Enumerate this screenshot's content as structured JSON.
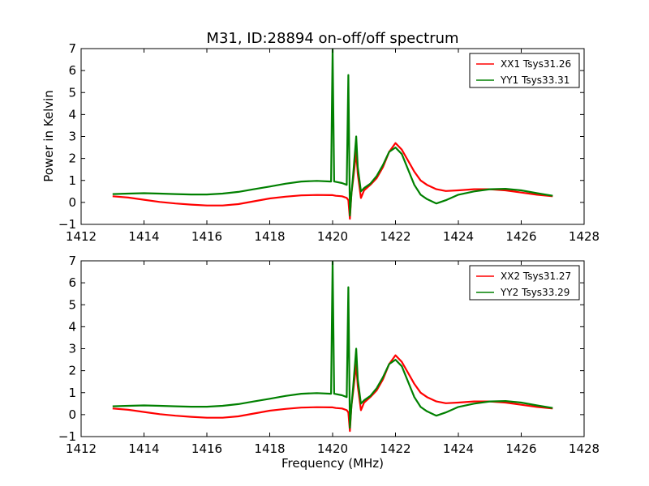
{
  "figure": {
    "title": "M31, ID:28894 on-off/off spectrum",
    "xlabel": "Frequency (MHz)",
    "ylabel": "Power in Kelvin"
  },
  "chart_data": [
    {
      "type": "line",
      "title": "M31, ID:28894 on-off/off spectrum",
      "xlabel": "",
      "ylabel": "Power in Kelvin",
      "xlim": [
        1412,
        1428
      ],
      "ylim": [
        -1,
        7
      ],
      "xticks": [
        "1412",
        "1414",
        "1416",
        "1418",
        "1420",
        "1422",
        "1424",
        "1426",
        "1428"
      ],
      "yticks": [
        "−1",
        "0",
        "1",
        "2",
        "3",
        "4",
        "5",
        "6",
        "7"
      ],
      "legend_position": "top-right",
      "grid": false,
      "series": [
        {
          "name": "XX1 Tsys31.26",
          "color": "#ff0000",
          "x": [
            1413.0,
            1413.5,
            1414.0,
            1414.5,
            1415.0,
            1415.5,
            1416.0,
            1416.5,
            1417.0,
            1417.5,
            1418.0,
            1418.5,
            1419.0,
            1419.5,
            1419.9,
            1420.0,
            1420.1,
            1420.3,
            1420.45,
            1420.5,
            1420.55,
            1420.6,
            1420.65,
            1420.75,
            1420.8,
            1420.9,
            1421.0,
            1421.2,
            1421.4,
            1421.6,
            1421.8,
            1422.0,
            1422.2,
            1422.4,
            1422.6,
            1422.8,
            1423.0,
            1423.3,
            1423.6,
            1424.0,
            1424.5,
            1425.0,
            1425.5,
            1426.0,
            1426.5,
            1427.0
          ],
          "y": [
            0.28,
            0.22,
            0.12,
            0.02,
            -0.05,
            -0.1,
            -0.14,
            -0.14,
            -0.08,
            0.05,
            0.18,
            0.26,
            0.32,
            0.34,
            0.33,
            0.33,
            0.3,
            0.28,
            0.2,
            0.1,
            -0.75,
            0.4,
            1.0,
            2.3,
            1.3,
            0.2,
            0.55,
            0.8,
            1.1,
            1.6,
            2.3,
            2.7,
            2.4,
            1.9,
            1.4,
            1.0,
            0.8,
            0.6,
            0.52,
            0.55,
            0.6,
            0.6,
            0.55,
            0.45,
            0.35,
            0.28
          ]
        },
        {
          "name": "YY1 Tsys33.31",
          "color": "#008000",
          "x": [
            1413.0,
            1413.5,
            1414.0,
            1414.5,
            1415.0,
            1415.5,
            1416.0,
            1416.5,
            1417.0,
            1417.5,
            1418.0,
            1418.5,
            1419.0,
            1419.5,
            1419.95,
            1420.0,
            1420.05,
            1420.3,
            1420.45,
            1420.5,
            1420.55,
            1420.6,
            1420.65,
            1420.75,
            1420.8,
            1420.9,
            1421.0,
            1421.2,
            1421.4,
            1421.6,
            1421.8,
            1422.0,
            1422.2,
            1422.4,
            1422.6,
            1422.8,
            1423.0,
            1423.3,
            1423.6,
            1424.0,
            1424.5,
            1425.0,
            1425.5,
            1426.0,
            1426.5,
            1427.0
          ],
          "y": [
            0.38,
            0.4,
            0.42,
            0.4,
            0.38,
            0.36,
            0.36,
            0.4,
            0.48,
            0.6,
            0.72,
            0.85,
            0.95,
            0.98,
            0.95,
            6.95,
            0.95,
            0.88,
            0.8,
            5.8,
            -0.6,
            0.4,
            1.2,
            3.0,
            1.6,
            0.5,
            0.65,
            0.85,
            1.2,
            1.7,
            2.3,
            2.5,
            2.2,
            1.5,
            0.8,
            0.35,
            0.15,
            -0.05,
            0.1,
            0.35,
            0.5,
            0.6,
            0.62,
            0.55,
            0.42,
            0.3
          ]
        }
      ]
    },
    {
      "type": "line",
      "title": "",
      "xlabel": "Frequency (MHz)",
      "ylabel": "",
      "xlim": [
        1412,
        1428
      ],
      "ylim": [
        -1,
        7
      ],
      "xticks": [
        "1412",
        "1414",
        "1416",
        "1418",
        "1420",
        "1422",
        "1424",
        "1426",
        "1428"
      ],
      "yticks": [
        "−1",
        "0",
        "1",
        "2",
        "3",
        "4",
        "5",
        "6",
        "7"
      ],
      "legend_position": "top-right",
      "grid": false,
      "series": [
        {
          "name": "XX2 Tsys31.27",
          "color": "#ff0000",
          "x": [
            1413.0,
            1413.5,
            1414.0,
            1414.5,
            1415.0,
            1415.5,
            1416.0,
            1416.5,
            1417.0,
            1417.5,
            1418.0,
            1418.5,
            1419.0,
            1419.5,
            1419.9,
            1420.0,
            1420.1,
            1420.3,
            1420.45,
            1420.5,
            1420.55,
            1420.6,
            1420.65,
            1420.75,
            1420.8,
            1420.9,
            1421.0,
            1421.2,
            1421.4,
            1421.6,
            1421.8,
            1422.0,
            1422.2,
            1422.4,
            1422.6,
            1422.8,
            1423.0,
            1423.3,
            1423.6,
            1424.0,
            1424.5,
            1425.0,
            1425.5,
            1426.0,
            1426.5,
            1427.0
          ],
          "y": [
            0.28,
            0.22,
            0.12,
            0.02,
            -0.05,
            -0.1,
            -0.14,
            -0.14,
            -0.08,
            0.05,
            0.18,
            0.26,
            0.32,
            0.34,
            0.33,
            0.33,
            0.3,
            0.28,
            0.2,
            0.1,
            -0.75,
            0.4,
            1.0,
            2.3,
            1.3,
            0.2,
            0.55,
            0.8,
            1.1,
            1.6,
            2.3,
            2.7,
            2.4,
            1.9,
            1.4,
            1.0,
            0.8,
            0.6,
            0.52,
            0.55,
            0.6,
            0.6,
            0.55,
            0.45,
            0.35,
            0.28
          ]
        },
        {
          "name": "YY2 Tsys33.29",
          "color": "#008000",
          "x": [
            1413.0,
            1413.5,
            1414.0,
            1414.5,
            1415.0,
            1415.5,
            1416.0,
            1416.5,
            1417.0,
            1417.5,
            1418.0,
            1418.5,
            1419.0,
            1419.5,
            1419.95,
            1420.0,
            1420.05,
            1420.3,
            1420.45,
            1420.5,
            1420.55,
            1420.6,
            1420.65,
            1420.75,
            1420.8,
            1420.9,
            1421.0,
            1421.2,
            1421.4,
            1421.6,
            1421.8,
            1422.0,
            1422.2,
            1422.4,
            1422.6,
            1422.8,
            1423.0,
            1423.3,
            1423.6,
            1424.0,
            1424.5,
            1425.0,
            1425.5,
            1426.0,
            1426.5,
            1427.0
          ],
          "y": [
            0.38,
            0.4,
            0.42,
            0.4,
            0.38,
            0.36,
            0.36,
            0.4,
            0.48,
            0.6,
            0.72,
            0.85,
            0.95,
            0.98,
            0.95,
            6.95,
            0.95,
            0.88,
            0.8,
            5.8,
            -0.6,
            0.4,
            1.2,
            3.0,
            1.6,
            0.5,
            0.65,
            0.85,
            1.2,
            1.7,
            2.3,
            2.5,
            2.2,
            1.5,
            0.8,
            0.35,
            0.15,
            -0.05,
            0.1,
            0.35,
            0.5,
            0.6,
            0.62,
            0.55,
            0.42,
            0.3
          ]
        }
      ]
    }
  ]
}
